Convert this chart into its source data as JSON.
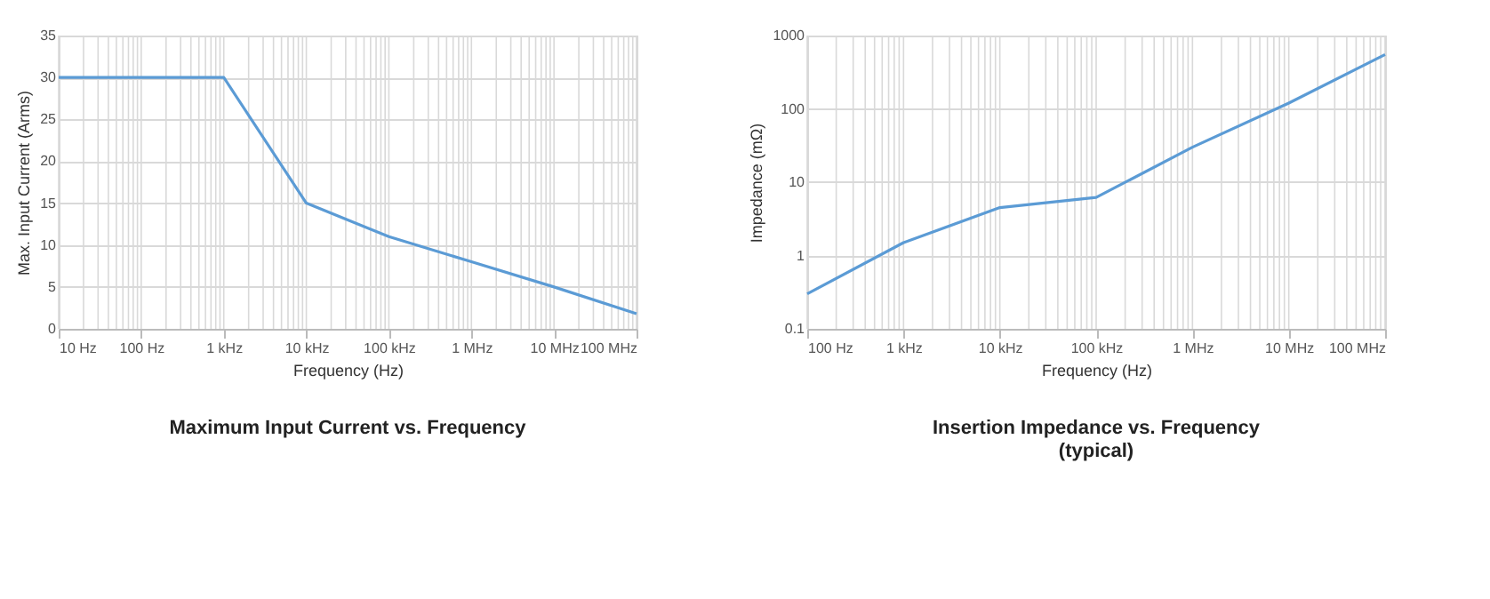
{
  "chart_data": [
    {
      "type": "line",
      "title": "Maximum Input Current vs. Frequency",
      "xlabel": "Frequency (Hz)",
      "ylabel": "Max. Input Current (Arms)",
      "grid": true,
      "categories": [
        "10 Hz",
        "100 Hz",
        "1 kHz",
        "10 kHz",
        "100 kHz",
        "1 MHz",
        "10 MHz",
        "100 MHz"
      ],
      "series": [
        {
          "color": "#5b9bd5",
          "values": [
            30,
            30,
            30,
            15,
            11,
            8,
            5,
            1.8
          ]
        }
      ],
      "ylim": [
        0,
        35
      ],
      "yticks": [
        0,
        5,
        10,
        15,
        20,
        25,
        30,
        35
      ]
    },
    {
      "type": "line",
      "title": "Insertion Impedance vs. Frequency",
      "subtitle": "(typical)",
      "xlabel": "Frequency (Hz)",
      "ylabel": "Impedance (mΩ)",
      "log": "y",
      "grid": true,
      "categories": [
        "100 Hz",
        "1 kHz",
        "10 kHz",
        "100 kHz",
        "1 MHz",
        "10 MHz",
        "100 MHz"
      ],
      "series": [
        {
          "color": "#5b9bd5",
          "values": [
            0.3,
            1.5,
            4.5,
            6.2,
            30,
            120,
            550
          ]
        }
      ],
      "ylim": [
        0.1,
        1000
      ],
      "yticks": [
        0.1,
        1,
        10,
        100,
        {
          "value": 1000,
          "label": "1000"
        }
      ]
    }
  ]
}
